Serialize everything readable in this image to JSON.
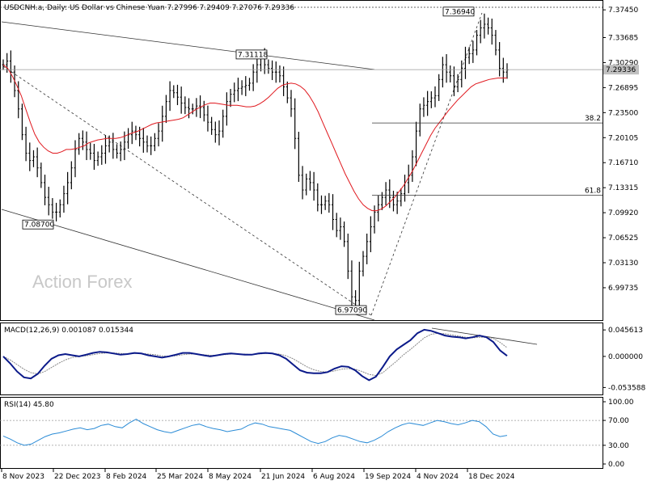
{
  "header": {
    "symbol_line": "USDCNH.a, Daily:  US Dollar vs Chinese Yuan  7.27996 7.29409 7.27076 7.29336"
  },
  "watermark": "Action Forex",
  "colors": {
    "price": "#000000",
    "ma": "#e0191f",
    "macd_main": "#0b1a8a",
    "macd_signal": "#888888",
    "rsi": "#2a8bd6",
    "grid_dash": "#555555",
    "level_line": "#888888"
  },
  "chart_data": [
    {
      "type": "line",
      "panel": "price",
      "ylim": [
        6.96,
        7.378
      ],
      "y_ticks": [
        "7.37450",
        "7.33685",
        "7.30290",
        "7.26895",
        "7.23500",
        "7.20105",
        "7.16710",
        "7.13315",
        "7.09920",
        "7.06525",
        "7.03130",
        "6.99735"
      ],
      "current_price_label": "7.29336",
      "current_price": 7.29336,
      "x_labels": [
        "8 Nov 2023",
        "22 Dec 2023",
        "8 Feb 2024",
        "25 Mar 2024",
        "8 May 2024",
        "21 Jun 2024",
        "6 Aug 2024",
        "19 Sep 2024",
        "4 Nov 2024",
        "18 Dec 2024"
      ],
      "callouts": [
        {
          "label": "7.36940",
          "value": 7.3694
        },
        {
          "label": "7.31118",
          "value": 7.31118
        },
        {
          "label": "7.08700",
          "value": 7.087
        },
        {
          "label": "6.97090",
          "value": 6.9709
        }
      ],
      "fib_levels": [
        {
          "label": "38.2",
          "value": 7.221
        },
        {
          "label": "61.8",
          "value": 7.1228
        }
      ],
      "series": [
        {
          "type": "close",
          "values": [
            7.3,
            7.305,
            7.29,
            7.265,
            7.24,
            7.205,
            7.18,
            7.17,
            7.175,
            7.16,
            7.14,
            7.12,
            7.11,
            7.1,
            7.1,
            7.11,
            7.125,
            7.14,
            7.16,
            7.185,
            7.2,
            7.195,
            7.185,
            7.18,
            7.17,
            7.175,
            7.18,
            7.19,
            7.195,
            7.185,
            7.18,
            7.185,
            7.195,
            7.205,
            7.21,
            7.205,
            7.2,
            7.195,
            7.19,
            7.19,
            7.2,
            7.21,
            7.23,
            7.25,
            7.265,
            7.262,
            7.256,
            7.248,
            7.242,
            7.24,
            7.24,
            7.244,
            7.242,
            7.232,
            7.222,
            7.212,
            7.205,
            7.21,
            7.23,
            7.25,
            7.26,
            7.265,
            7.268,
            7.27,
            7.272,
            7.275,
            7.29,
            7.3,
            7.31,
            7.3,
            7.295,
            7.29,
            7.29,
            7.285,
            7.27,
            7.255,
            7.24,
            7.2,
            7.15,
            7.13,
            7.145,
            7.14,
            7.13,
            7.11,
            7.11,
            7.115,
            7.11,
            7.09,
            7.075,
            7.08,
            7.06,
            7.02,
            6.985,
            6.98,
            7.02,
            7.04,
            7.06,
            7.08,
            7.1,
            7.11,
            7.12,
            7.13,
            7.12,
            7.11,
            7.115,
            7.125,
            7.14,
            7.15,
            7.175,
            7.21,
            7.24,
            7.245,
            7.25,
            7.255,
            7.258,
            7.28,
            7.3,
            7.29,
            7.285,
            7.27,
            7.28,
            7.295,
            7.31,
            7.315,
            7.32,
            7.34,
            7.35,
            7.355,
            7.35,
            7.34,
            7.32,
            7.295,
            7.29,
            7.293
          ]
        },
        {
          "type": "ma",
          "values": [
            7.3,
            7.295,
            7.285,
            7.272,
            7.258,
            7.24,
            7.222,
            7.206,
            7.195,
            7.188,
            7.183,
            7.18,
            7.18,
            7.182,
            7.185,
            7.185,
            7.186,
            7.188,
            7.19,
            7.194,
            7.196,
            7.198,
            7.199,
            7.2,
            7.2,
            7.2,
            7.201,
            7.203,
            7.206,
            7.208,
            7.21,
            7.213,
            7.216,
            7.219,
            7.221,
            7.222,
            7.223,
            7.224,
            7.225,
            7.226,
            7.228,
            7.232,
            7.236,
            7.24,
            7.243,
            7.246,
            7.248,
            7.248,
            7.247,
            7.246,
            7.245,
            7.245,
            7.245,
            7.244,
            7.243,
            7.243,
            7.244,
            7.247,
            7.251,
            7.256,
            7.262,
            7.268,
            7.272,
            7.274,
            7.275,
            7.274,
            7.271,
            7.266,
            7.258,
            7.248,
            7.236,
            7.222,
            7.208,
            7.194,
            7.18,
            7.166,
            7.152,
            7.14,
            7.128,
            7.118,
            7.11,
            7.105,
            7.102,
            7.102,
            7.104,
            7.108,
            7.114,
            7.12,
            7.128,
            7.136,
            7.146,
            7.156,
            7.168,
            7.18,
            7.192,
            7.204,
            7.214,
            7.222,
            7.23,
            7.238,
            7.245,
            7.252,
            7.258,
            7.264,
            7.27,
            7.274,
            7.276,
            7.278,
            7.28,
            7.281,
            7.282,
            7.282,
            7.282
          ]
        }
      ]
    },
    {
      "type": "line",
      "panel": "macd",
      "title": "MACD(12,26,9) 0.001087 0.015344",
      "y_ticks": [
        "0.045613",
        "0.000000",
        "-0.053588"
      ],
      "ylim": [
        -0.06,
        0.05
      ],
      "series": [
        {
          "type": "main",
          "values": [
            0.0,
            -0.012,
            -0.026,
            -0.036,
            -0.038,
            -0.03,
            -0.016,
            -0.004,
            0.002,
            0.004,
            0.002,
            0.0,
            0.003,
            0.006,
            0.008,
            0.007,
            0.005,
            0.003,
            0.004,
            0.006,
            0.005,
            0.002,
            0.0,
            -0.002,
            0.0,
            0.003,
            0.006,
            0.006,
            0.004,
            0.002,
            0.0,
            0.002,
            0.004,
            0.005,
            0.004,
            0.003,
            0.003,
            0.005,
            0.006,
            0.005,
            0.002,
            -0.004,
            -0.014,
            -0.024,
            -0.028,
            -0.029,
            -0.029,
            -0.027,
            -0.021,
            -0.017,
            -0.018,
            -0.024,
            -0.034,
            -0.041,
            -0.035,
            -0.018,
            0.0,
            0.012,
            0.02,
            0.028,
            0.04,
            0.046,
            0.044,
            0.04,
            0.036,
            0.034,
            0.033,
            0.031,
            0.033,
            0.036,
            0.033,
            0.025,
            0.01,
            0.001
          ]
        },
        {
          "type": "signal",
          "values": [
            0.0,
            -0.006,
            -0.014,
            -0.022,
            -0.028,
            -0.03,
            -0.026,
            -0.019,
            -0.012,
            -0.006,
            -0.002,
            0.0,
            0.001,
            0.003,
            0.005,
            0.006,
            0.006,
            0.005,
            0.004,
            0.005,
            0.005,
            0.004,
            0.003,
            0.001,
            0.0,
            0.001,
            0.003,
            0.004,
            0.004,
            0.003,
            0.002,
            0.002,
            0.003,
            0.004,
            0.004,
            0.004,
            0.003,
            0.004,
            0.005,
            0.005,
            0.004,
            0.001,
            -0.004,
            -0.011,
            -0.018,
            -0.023,
            -0.026,
            -0.027,
            -0.025,
            -0.022,
            -0.021,
            -0.022,
            -0.026,
            -0.031,
            -0.033,
            -0.028,
            -0.018,
            -0.008,
            0.003,
            0.012,
            0.022,
            0.032,
            0.038,
            0.04,
            0.039,
            0.037,
            0.035,
            0.033,
            0.032,
            0.033,
            0.033,
            0.031,
            0.024,
            0.015
          ]
        }
      ]
    },
    {
      "type": "line",
      "panel": "rsi",
      "title": "RSI(14) 45.80",
      "y_ticks": [
        "100.00",
        "70.00",
        "30.00",
        "0.00"
      ],
      "ylim": [
        0,
        100
      ],
      "levels": [
        70,
        30
      ],
      "series": [
        {
          "type": "rsi",
          "values": [
            45,
            40,
            34,
            30,
            32,
            38,
            44,
            48,
            50,
            53,
            56,
            58,
            55,
            57,
            62,
            64,
            60,
            58,
            66,
            72,
            65,
            60,
            55,
            52,
            50,
            54,
            58,
            62,
            64,
            60,
            57,
            55,
            52,
            54,
            56,
            62,
            66,
            64,
            60,
            58,
            56,
            54,
            48,
            42,
            36,
            33,
            36,
            42,
            46,
            44,
            40,
            36,
            34,
            38,
            44,
            52,
            58,
            63,
            66,
            64,
            62,
            66,
            70,
            68,
            65,
            63,
            66,
            70,
            68,
            60,
            48,
            44,
            46
          ]
        }
      ]
    }
  ]
}
